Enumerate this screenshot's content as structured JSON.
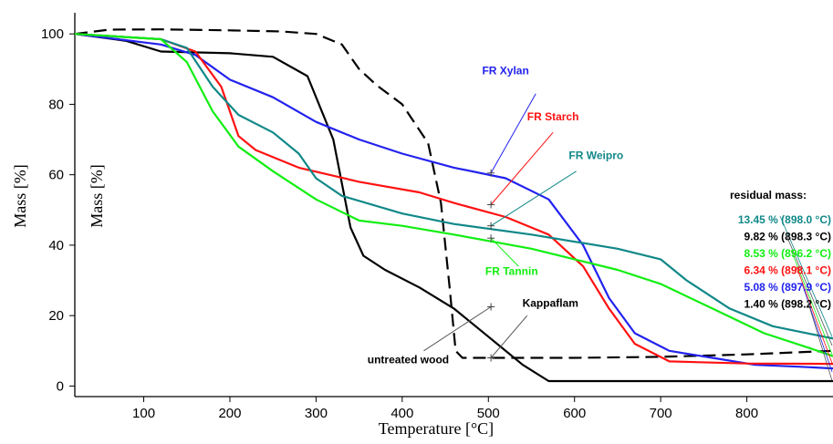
{
  "chart_data": {
    "type": "line",
    "xlabel": "Temperature [°C]",
    "ylabel": "Mass [%]",
    "ylabel_secondary": "Mass [%]",
    "xlim": [
      20,
      900
    ],
    "ylim": [
      -3,
      106
    ],
    "x_ticks": [
      100,
      200,
      300,
      400,
      500,
      600,
      700,
      800
    ],
    "y_ticks": [
      0,
      20,
      40,
      60,
      80,
      100
    ],
    "grid": false,
    "series": [
      {
        "name": "Kappaflam",
        "color": "#000000",
        "dash": true,
        "points": [
          [
            20,
            100
          ],
          [
            60,
            101.2
          ],
          [
            120,
            101.3
          ],
          [
            200,
            101
          ],
          [
            260,
            100.7
          ],
          [
            300,
            100
          ],
          [
            330,
            97
          ],
          [
            350,
            90
          ],
          [
            370,
            85.5
          ],
          [
            400,
            80
          ],
          [
            430,
            69
          ],
          [
            445,
            52
          ],
          [
            455,
            28
          ],
          [
            462,
            10
          ],
          [
            470,
            8
          ],
          [
            500,
            8
          ],
          [
            600,
            8
          ],
          [
            700,
            8.3
          ],
          [
            800,
            9
          ],
          [
            900,
            10
          ]
        ]
      },
      {
        "name": "untreated wood",
        "color": "#000000",
        "dash": false,
        "points": [
          [
            20,
            100
          ],
          [
            80,
            98
          ],
          [
            120,
            95
          ],
          [
            200,
            94.5
          ],
          [
            250,
            93.5
          ],
          [
            290,
            88
          ],
          [
            320,
            70
          ],
          [
            340,
            45
          ],
          [
            355,
            37
          ],
          [
            380,
            33
          ],
          [
            420,
            28
          ],
          [
            460,
            22
          ],
          [
            500,
            14
          ],
          [
            540,
            6
          ],
          [
            570,
            1.4
          ],
          [
            700,
            1.4
          ],
          [
            900,
            1.4
          ]
        ]
      },
      {
        "name": "FR Xylan",
        "color": "#2222ee",
        "dash": false,
        "points": [
          [
            20,
            100
          ],
          [
            120,
            97
          ],
          [
            160,
            94
          ],
          [
            200,
            87
          ],
          [
            250,
            82
          ],
          [
            300,
            75
          ],
          [
            350,
            70
          ],
          [
            400,
            66
          ],
          [
            460,
            62
          ],
          [
            520,
            59
          ],
          [
            570,
            53
          ],
          [
            610,
            40
          ],
          [
            640,
            25
          ],
          [
            670,
            15
          ],
          [
            710,
            10
          ],
          [
            760,
            8
          ],
          [
            810,
            6
          ],
          [
            860,
            5.5
          ],
          [
            900,
            5
          ]
        ]
      },
      {
        "name": "FR Starch",
        "color": "#ff1111",
        "dash": false,
        "points": [
          [
            20,
            100
          ],
          [
            120,
            98.5
          ],
          [
            160,
            95
          ],
          [
            190,
            85
          ],
          [
            210,
            71
          ],
          [
            230,
            67
          ],
          [
            280,
            62
          ],
          [
            350,
            58
          ],
          [
            420,
            55
          ],
          [
            460,
            52
          ],
          [
            520,
            48
          ],
          [
            570,
            43
          ],
          [
            610,
            34
          ],
          [
            640,
            22
          ],
          [
            670,
            12
          ],
          [
            710,
            7
          ],
          [
            800,
            6.4
          ],
          [
            900,
            6.3
          ]
        ]
      },
      {
        "name": "FR Weipro",
        "color": "#118888",
        "dash": false,
        "points": [
          [
            20,
            100
          ],
          [
            120,
            98.5
          ],
          [
            150,
            96
          ],
          [
            180,
            85
          ],
          [
            210,
            77
          ],
          [
            250,
            72
          ],
          [
            280,
            66
          ],
          [
            300,
            59
          ],
          [
            330,
            54
          ],
          [
            400,
            49
          ],
          [
            460,
            46
          ],
          [
            550,
            43
          ],
          [
            650,
            39
          ],
          [
            700,
            36
          ],
          [
            730,
            30
          ],
          [
            780,
            22
          ],
          [
            830,
            17
          ],
          [
            900,
            13.5
          ]
        ]
      },
      {
        "name": "FR Tannin",
        "color": "#11ee11",
        "dash": false,
        "points": [
          [
            20,
            100
          ],
          [
            120,
            98.5
          ],
          [
            150,
            92
          ],
          [
            180,
            78
          ],
          [
            210,
            68
          ],
          [
            250,
            61
          ],
          [
            300,
            53
          ],
          [
            350,
            47
          ],
          [
            400,
            45.5
          ],
          [
            460,
            43
          ],
          [
            550,
            39
          ],
          [
            650,
            33
          ],
          [
            700,
            29
          ],
          [
            760,
            22
          ],
          [
            820,
            15
          ],
          [
            870,
            11
          ],
          [
            900,
            8.5
          ]
        ]
      }
    ],
    "annotations": [
      {
        "text": "FR Xylan",
        "color": "#2222ee",
        "at": [
          460,
          62
        ],
        "label_at": [
          520,
          88.5
        ],
        "line_from": [
          503,
          60.5
        ],
        "line_to": [
          555,
          83
        ]
      },
      {
        "text": "FR Starch",
        "color": "#ff1111",
        "at": [
          460,
          51.5
        ],
        "label_at": [
          575,
          75.5
        ],
        "line_from": [
          503,
          51.5
        ],
        "line_to": [
          575,
          72
        ]
      },
      {
        "text": "FR Weipro",
        "color": "#118888",
        "at": [
          460,
          45.5
        ],
        "label_at": [
          625,
          64.5
        ],
        "line_from": [
          503,
          45.5
        ],
        "line_to": [
          602,
          61
        ]
      },
      {
        "text": "FR Tannin",
        "color": "#11ee11",
        "at": [
          460,
          42
        ],
        "label_at": [
          527,
          31.5
        ],
        "line_from": [
          503,
          42
        ],
        "line_to": [
          535,
          34
        ]
      },
      {
        "text": "Kappaflam",
        "color": "#000000",
        "at": [
          460,
          8
        ],
        "label_at": [
          572,
          22.5
        ],
        "line_from": [
          503,
          8
        ],
        "line_to": [
          545,
          20
        ]
      },
      {
        "text": "untreated wood",
        "color": "#000000",
        "at": [
          460,
          22.5
        ],
        "label_at": [
          407,
          6.5
        ],
        "line_from": [
          503,
          22.5
        ],
        "line_to": [
          425,
          10
        ]
      }
    ],
    "residual": {
      "title": "residual mass:",
      "items": [
        {
          "text": "13.45 % (898.0 °C)",
          "color": "#118888"
        },
        {
          "text": "9.82 % (898.3 °C)",
          "color": "#000000"
        },
        {
          "text": "8.53 % (896.2 °C)",
          "color": "#11ee11"
        },
        {
          "text": "6.34 % (898.1 °C)",
          "color": "#ff1111"
        },
        {
          "text": "5.08 % (897.9 °C)",
          "color": "#2222ee"
        },
        {
          "text": "1.40 % (898.2 °C)",
          "color": "#000000"
        }
      ]
    }
  }
}
